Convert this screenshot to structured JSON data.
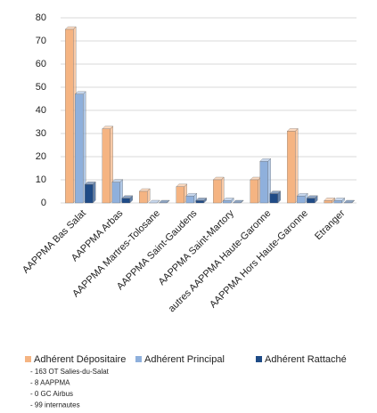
{
  "chart_data": {
    "type": "bar",
    "categories": [
      "AAPPMA Bas Salat",
      "AAPPMA Arbas",
      "AAPPMA Martres-Tolosane",
      "AAPPMA Saint-Gaudens",
      "AAPPMA Saint-Martory",
      "autres AAPPMA Haute-Garonne",
      "AAPPMA Hors Haute-Garonne",
      "Etranger"
    ],
    "series": [
      {
        "name": "Adhérent Dépositaire",
        "color": "#f5b482",
        "values": [
          75,
          32,
          5,
          7,
          10,
          10,
          31,
          1
        ]
      },
      {
        "name": "Adhérent Principal",
        "color": "#8fb0dc",
        "values": [
          47,
          9,
          0,
          3,
          1,
          18,
          3,
          1
        ]
      },
      {
        "name": "Adhérent Rattaché",
        "color": "#1f4b86",
        "values": [
          8,
          2,
          0,
          1,
          0,
          4,
          2,
          0
        ]
      }
    ],
    "ylim": [
      0,
      80
    ],
    "yticks": [
      0,
      10,
      20,
      30,
      40,
      50,
      60,
      70,
      80
    ],
    "grid": true,
    "notes": [
      "- 163 OT Salies-du-Salat",
      "- 8 AAPPMA",
      "- 0 GC Airbus",
      "- 99 internautes"
    ]
  }
}
